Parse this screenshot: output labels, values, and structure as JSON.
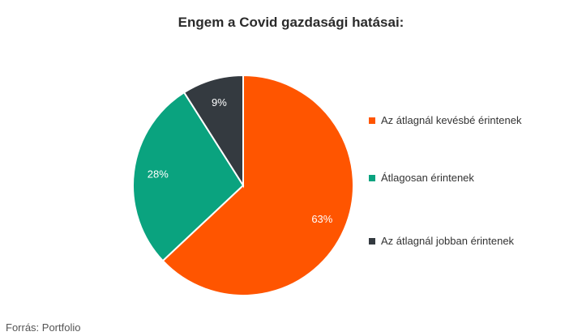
{
  "chart_data": {
    "type": "pie",
    "title": "Engem a Covid gazdasági hatásai:",
    "slices": [
      {
        "label": "Az átlagnál kevésbé érintenek",
        "value": 63,
        "value_label": "63%",
        "color": "#ff5500"
      },
      {
        "label": "Átlagosan érintenek",
        "value": 28,
        "value_label": "28%",
        "color": "#0aa37f"
      },
      {
        "label": "Az átlagnál jobban érintenek",
        "value": 9,
        "value_label": "9%",
        "color": "#343a40"
      }
    ],
    "legend_position": "right"
  },
  "source": "Forrás: Portfolio"
}
